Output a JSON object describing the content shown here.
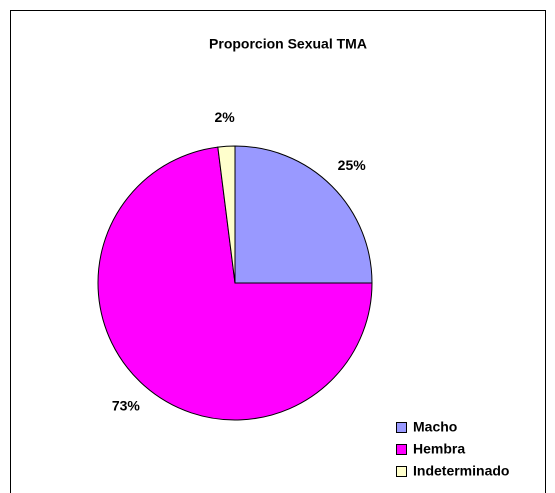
{
  "chart_data": {
    "type": "pie",
    "title": "Proporcion Sexual TMA",
    "categories": [
      "Macho",
      "Hembra",
      "Indeterminado"
    ],
    "values": [
      25,
      73,
      2
    ],
    "value_labels": [
      "25%",
      "73%",
      "2%"
    ],
    "colors": [
      "#9999ff",
      "#ff00ff",
      "#ffffcc"
    ],
    "legend": "bottom-right"
  }
}
